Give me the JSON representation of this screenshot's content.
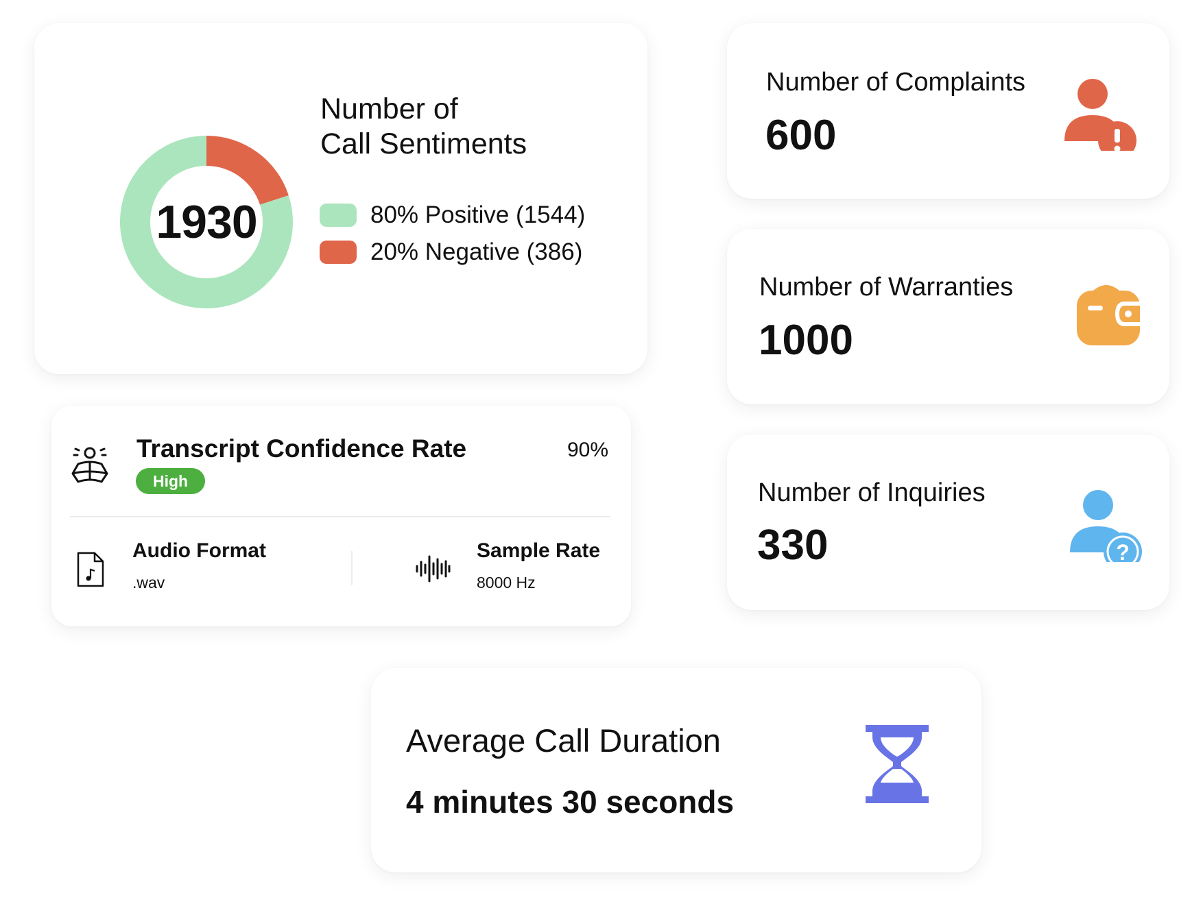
{
  "sentiments": {
    "title": "Number of\nCall Sentiments",
    "total": "1930",
    "chart_data": {
      "type": "pie",
      "categories": [
        "Positive",
        "Negative"
      ],
      "values": [
        1544,
        386
      ],
      "percent": [
        80,
        20
      ],
      "colors": [
        "#abe5bd",
        "#e06649"
      ]
    },
    "legend": [
      {
        "label": "80% Positive (1544)",
        "color": "#abe5bd"
      },
      {
        "label": "20% Negative (386)",
        "color": "#e06649"
      }
    ]
  },
  "complaints": {
    "title": "Number of Complaints",
    "value": "600",
    "icon": "user-alert-icon",
    "color": "#e06649"
  },
  "warranties": {
    "title": "Number of Warranties",
    "value": "1000",
    "icon": "wallet-icon",
    "color": "#f2a94a"
  },
  "inquiries": {
    "title": "Number of Inquiries",
    "value": "330",
    "icon": "user-question-icon",
    "color": "#5fb5ee"
  },
  "transcript": {
    "title": "Transcript Confidence Rate",
    "percent": "90%",
    "badge": "High",
    "badge_color": "#4caf3f",
    "audio_format": {
      "label": "Audio Format",
      "value": ".wav",
      "icon": "audio-file-icon"
    },
    "sample_rate": {
      "label": "Sample Rate",
      "value": "8000 Hz",
      "icon": "sound-wave-icon"
    },
    "icon": "speaker-reading-icon"
  },
  "duration": {
    "title": "Average Call Duration",
    "value": "4 minutes 30 seconds",
    "icon": "hourglass-icon",
    "color": "#6874e6"
  }
}
